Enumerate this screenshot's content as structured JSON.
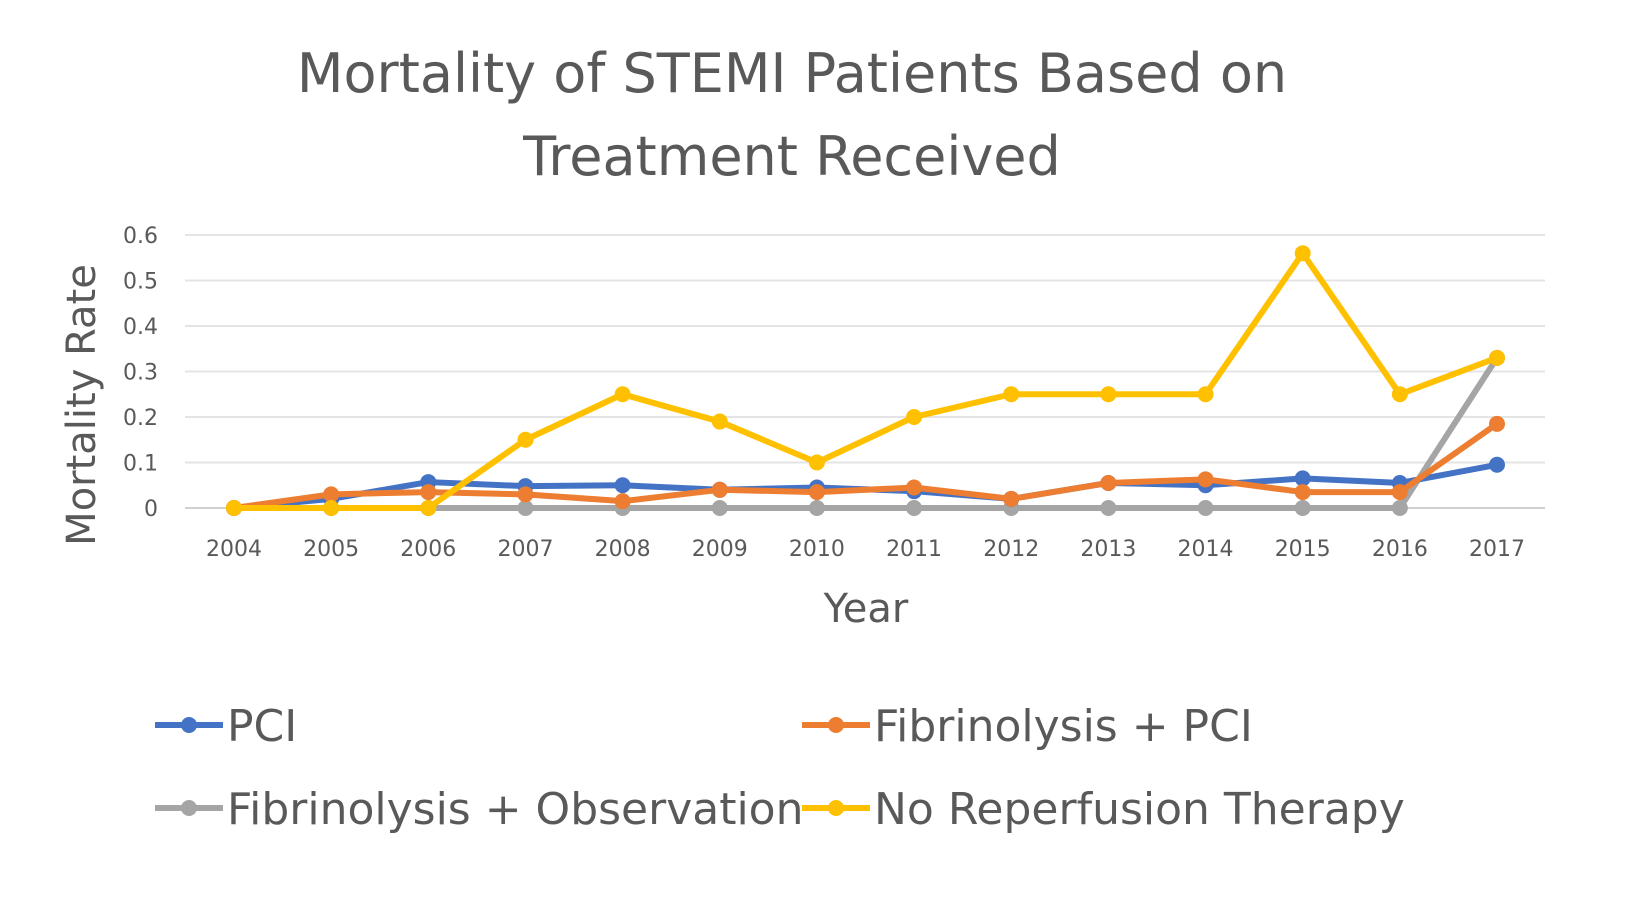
{
  "chart_data": {
    "type": "line",
    "title_lines": [
      "Mortality of STEMI Patients Based on",
      "Treatment Received"
    ],
    "xlabel": "Year",
    "ylabel": "Mortality Rate",
    "x": [
      "2004",
      "2005",
      "2006",
      "2007",
      "2008",
      "2009",
      "2010",
      "2011",
      "2012",
      "2013",
      "2014",
      "2015",
      "2016",
      "2017"
    ],
    "yticks": [
      "0",
      "0.1",
      "0.2",
      "0.3",
      "0.4",
      "0.5",
      "0.6"
    ],
    "ylim": [
      0,
      0.6
    ],
    "grid": true,
    "legend_placement": "bottom",
    "series": [
      {
        "name": "PCI",
        "color": "#4472C4",
        "values": [
          0,
          0.02,
          0.057,
          0.048,
          0.05,
          0.04,
          0.045,
          0.037,
          0.02,
          0.055,
          0.05,
          0.065,
          0.055,
          0.095
        ]
      },
      {
        "name": "Fibrinolysis + PCI",
        "color": "#ED7D31",
        "values": [
          0,
          0.03,
          0.035,
          0.03,
          0.015,
          0.04,
          0.035,
          0.045,
          0.02,
          0.055,
          0.063,
          0.035,
          0.035,
          0.185
        ]
      },
      {
        "name": "Fibrinolysis + Observation",
        "color": "#A5A5A5",
        "values": [
          0,
          0,
          0,
          0,
          0,
          0,
          0,
          0,
          0,
          0,
          0,
          0,
          0,
          0.33
        ]
      },
      {
        "name": "No Reperfusion Therapy",
        "color": "#FFC000",
        "values": [
          0,
          0,
          0,
          0.15,
          0.25,
          0.19,
          0.1,
          0.2,
          0.25,
          0.25,
          0.25,
          0.56,
          0.25,
          0.33
        ]
      }
    ]
  }
}
